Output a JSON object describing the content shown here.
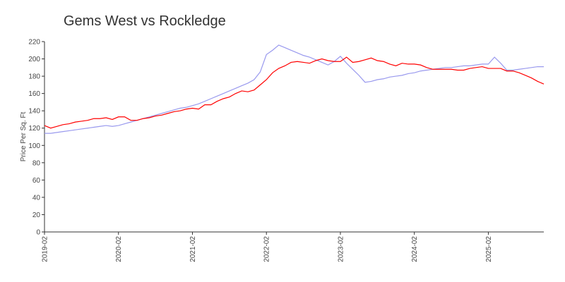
{
  "chart_data": {
    "type": "line",
    "title": "Gems West vs Rockledge",
    "y_label": "Price Per Sq. Ft",
    "x": [
      "2019-02",
      "2019-03",
      "2019-04",
      "2019-05",
      "2019-06",
      "2019-07",
      "2019-08",
      "2019-09",
      "2019-10",
      "2019-11",
      "2019-12",
      "2020-01",
      "2020-02",
      "2020-03",
      "2020-04",
      "2020-05",
      "2020-06",
      "2020-07",
      "2020-08",
      "2020-09",
      "2020-10",
      "2020-11",
      "2020-12",
      "2021-01",
      "2021-02",
      "2021-03",
      "2021-04",
      "2021-05",
      "2021-06",
      "2021-07",
      "2021-08",
      "2021-09",
      "2021-10",
      "2021-11",
      "2021-12",
      "2022-01",
      "2022-02",
      "2022-03",
      "2022-04",
      "2022-05",
      "2022-06",
      "2022-07",
      "2022-08",
      "2022-09",
      "2022-10",
      "2022-11",
      "2022-12",
      "2023-01",
      "2023-02",
      "2023-03",
      "2023-04",
      "2023-05",
      "2023-06",
      "2023-07",
      "2023-08",
      "2023-09",
      "2023-10",
      "2023-11",
      "2023-12",
      "2024-01",
      "2024-02",
      "2024-03",
      "2024-04",
      "2024-05",
      "2024-06",
      "2024-07",
      "2024-08",
      "2024-09",
      "2024-10",
      "2024-11",
      "2024-12",
      "2025-01",
      "2025-02",
      "2025-03",
      "2025-04",
      "2025-05",
      "2025-06",
      "2025-07",
      "2025-08",
      "2025-09",
      "2025-10",
      "2025-11"
    ],
    "xlim": [
      "2019-02",
      "2025-11"
    ],
    "xticks": [
      "2019-02",
      "2020-02",
      "2021-02",
      "2022-02",
      "2023-02",
      "2024-02",
      "2025-02"
    ],
    "ylim": [
      0,
      220
    ],
    "yticks": [
      0,
      20,
      40,
      60,
      80,
      100,
      120,
      140,
      160,
      180,
      200,
      220
    ],
    "grid": false,
    "series": [
      {
        "color": "#ff0000",
        "values": [
          123,
          120,
          122,
          124,
          125,
          127,
          128,
          129,
          131,
          131,
          132,
          130,
          133,
          133,
          129,
          129,
          131,
          132,
          134,
          135,
          137,
          139,
          140,
          142,
          143,
          142,
          147,
          147,
          151,
          154,
          156,
          160,
          163,
          162,
          164,
          170,
          176,
          184,
          189,
          192,
          196,
          197,
          196,
          195,
          198,
          200,
          198,
          197,
          197,
          202,
          196,
          197,
          199,
          201,
          198,
          197,
          194,
          192,
          195,
          194,
          194,
          193,
          190,
          188,
          188,
          188,
          188,
          187,
          187,
          189,
          190,
          191,
          189,
          189,
          189,
          186,
          186,
          184,
          181,
          178,
          174,
          171
        ]
      },
      {
        "color": "#9999ee",
        "values": [
          114,
          114,
          115,
          116,
          117,
          118,
          119,
          120,
          121,
          122,
          123,
          122,
          123,
          125,
          127,
          129,
          131,
          133,
          135,
          137,
          139,
          141,
          143,
          144,
          146,
          148,
          151,
          154,
          157,
          160,
          163,
          166,
          169,
          172,
          176,
          185,
          205,
          210,
          216,
          213,
          210,
          207,
          204,
          202,
          199,
          196,
          193,
          197,
          203,
          195,
          188,
          181,
          173,
          174,
          176,
          177,
          179,
          180,
          181,
          183,
          184,
          186,
          187,
          188,
          189,
          190,
          190,
          191,
          192,
          192,
          193,
          194,
          194,
          202,
          195,
          187,
          187,
          188,
          189,
          190,
          191,
          191
        ]
      }
    ]
  }
}
